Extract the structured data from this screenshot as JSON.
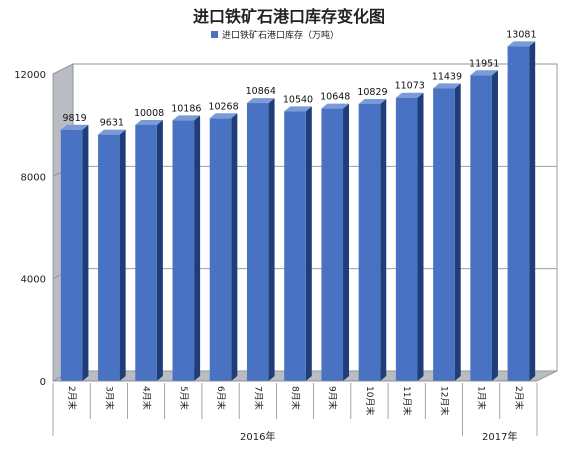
{
  "chart_data": {
    "type": "bar",
    "title": "进口铁矿石港口库存变化图",
    "legend": {
      "label": "进口铁矿石港口库存（万吨）",
      "placement": "top-center"
    },
    "categories": [
      "2月末",
      "3月末",
      "4月末",
      "5月末",
      "6月末",
      "7月末",
      "8月末",
      "9月末",
      "10月末",
      "11月末",
      "12月末",
      "1月末",
      "2月末"
    ],
    "values": [
      9819,
      9631,
      10008,
      10186,
      10268,
      10864,
      10540,
      10648,
      10829,
      11073,
      11439,
      11951,
      13081
    ],
    "groups": [
      {
        "label": "2016年",
        "count": 11
      },
      {
        "label": "2017年",
        "count": 2
      }
    ],
    "yticks": [
      0,
      4000,
      8000,
      12000
    ],
    "ylim": [
      0,
      12000
    ],
    "grid": true,
    "style": "3d-column",
    "colors": {
      "bar_front": "#4a72c2",
      "bar_side": "#1f3d78",
      "bar_top": "#7a9ad8",
      "wall": "#b9bcc2",
      "grid": "#8b8f96"
    }
  }
}
